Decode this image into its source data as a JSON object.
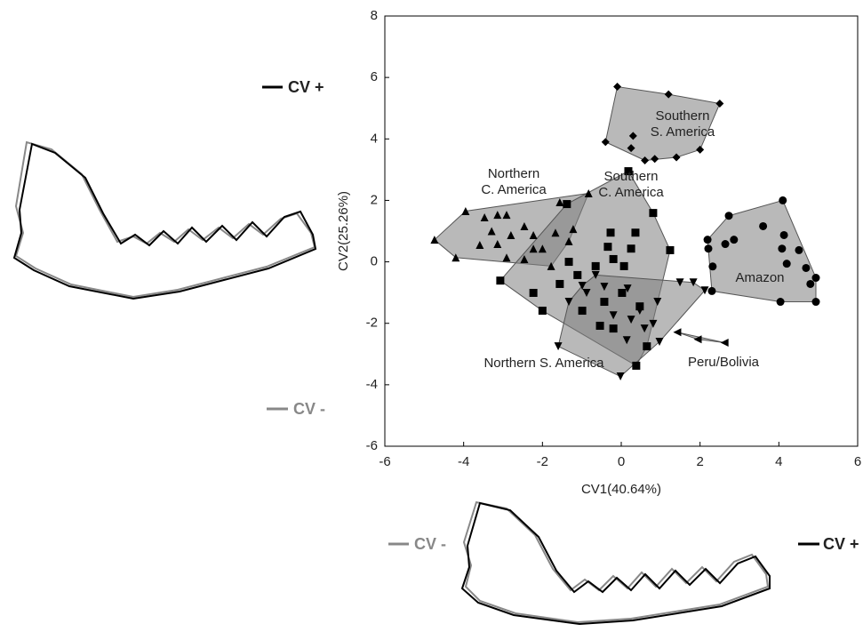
{
  "chart_data": {
    "type": "scatter",
    "xlabel": "CV1(40.64%)",
    "ylabel": "CV2(25.26%)",
    "xlim": [
      -6,
      6
    ],
    "ylim": [
      -6,
      8
    ],
    "xticks": [
      -6,
      -4,
      -2,
      0,
      2,
      4,
      6
    ],
    "yticks": [
      -6,
      -4,
      -2,
      0,
      2,
      4,
      6,
      8
    ],
    "hulls": true,
    "hull_fill": "#808080",
    "series": [
      {
        "name": "Southern\nS. America",
        "marker": "diamond",
        "color": "#000000",
        "x": [
          -0.1,
          1.2,
          2.5,
          -0.4,
          0.3,
          0.85,
          1.4,
          2.0,
          0.6,
          0.25
        ],
        "values": [
          5.7,
          5.45,
          5.15,
          3.9,
          4.1,
          3.35,
          3.4,
          3.65,
          3.3,
          3.7
        ]
      },
      {
        "name": "Amazon",
        "marker": "circle",
        "color": "#000000",
        "x": [
          4.1,
          2.73,
          2.19,
          2.21,
          2.64,
          2.32,
          2.86,
          3.6,
          4.13,
          4.08,
          4.51,
          4.2,
          4.69,
          4.94,
          4.8,
          4.94,
          4.04,
          2.3
        ],
        "values": [
          2.0,
          1.5,
          0.72,
          0.43,
          0.58,
          -0.15,
          0.72,
          1.16,
          0.87,
          0.43,
          0.38,
          -0.06,
          -0.2,
          -0.52,
          -0.72,
          -1.3,
          -1.3,
          -0.95
        ]
      },
      {
        "name": "Northern\nC. America",
        "marker": "triangle-up",
        "color": "#000000",
        "x": [
          -4.74,
          -4.2,
          -3.95,
          -3.47,
          -3.14,
          -2.91,
          -3.29,
          -3.59,
          -2.8,
          -2.46,
          -2.23,
          -1.56,
          -0.83,
          -1.67,
          -2.0,
          -2.46,
          -2.91,
          -1.33,
          -2.23,
          -1.78,
          -3.14,
          -1.22
        ],
        "values": [
          0.72,
          0.14,
          1.65,
          1.45,
          1.53,
          1.53,
          1.0,
          0.55,
          0.87,
          1.16,
          0.87,
          1.94,
          2.23,
          0.95,
          0.43,
          0.09,
          0.14,
          0.67,
          0.43,
          -0.14,
          0.58,
          1.07
        ]
      },
      {
        "name": "Southern\nC. America",
        "marker": "square",
        "color": "#000000",
        "x": [
          0.18,
          0.81,
          1.24,
          -3.07,
          -2.0,
          0.38,
          0.65,
          -1.38,
          -0.27,
          0.36,
          -0.34,
          0.25,
          -0.2,
          -0.65,
          -1.11,
          -1.56,
          0.02,
          -0.43,
          -0.99,
          -0.2,
          -0.54,
          0.47,
          -1.33,
          -2.23,
          0.07
        ],
        "values": [
          2.95,
          1.59,
          0.38,
          -0.61,
          -1.59,
          -3.38,
          -2.75,
          1.88,
          0.95,
          0.95,
          0.49,
          0.43,
          0.09,
          -0.14,
          -0.43,
          -0.72,
          -1.01,
          -1.3,
          -1.59,
          -2.17,
          -2.08,
          -1.45,
          0,
          -1.01,
          -0.14
        ]
      },
      {
        "name": "Northern S. America",
        "marker": "triangle-down",
        "color": "#000000",
        "x": [
          -0.02,
          -1.6,
          0.97,
          2.12,
          1.83,
          1.49,
          -0.99,
          -0.43,
          0.16,
          0.92,
          0.47,
          0.25,
          -0.2,
          -0.88,
          -1.33,
          0.59,
          0.14,
          0.81,
          -0.65
        ],
        "values": [
          -3.73,
          -2.75,
          -2.6,
          -0.93,
          -0.67,
          -0.67,
          -0.78,
          -0.81,
          -0.87,
          -1.3,
          -1.59,
          -1.88,
          -1.74,
          -1.01,
          -1.3,
          -2.17,
          -2.55,
          -2.02,
          -0.43
        ]
      },
      {
        "name": "Peru/Bolivia",
        "marker": "triangle-left",
        "color": "#000000",
        "x": [
          1.42,
          1.94,
          2.62
        ],
        "values": [
          -2.29,
          -2.52,
          -2.63
        ]
      }
    ],
    "annotations": [
      "CV +",
      "CV -",
      "CV -",
      "CV +"
    ]
  }
}
